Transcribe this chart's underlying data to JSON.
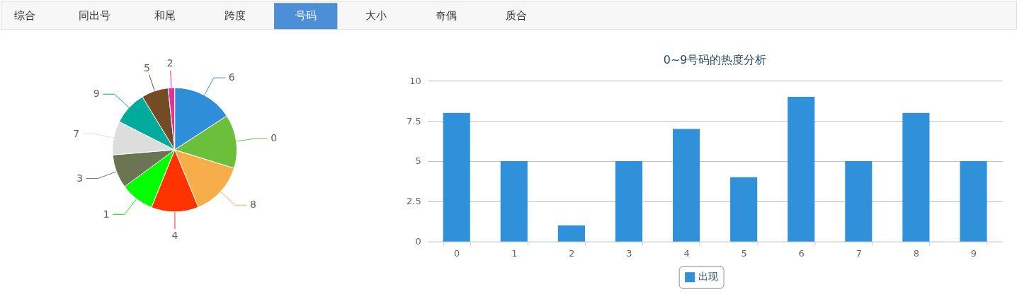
{
  "chart_data": [
    {
      "type": "other",
      "categories": [
        "综合",
        "同出号",
        "和尾",
        "跨度",
        "号码",
        "大小",
        "奇偶",
        "质合"
      ],
      "colors": [
        null,
        null,
        null,
        null,
        "#4d8fd6",
        null,
        null,
        null
      ]
    },
    {
      "type": "pie",
      "categories": [
        "6",
        "0",
        "8",
        "4",
        "1",
        "3",
        "7",
        "9",
        "5",
        "2"
      ],
      "values": [
        15.8,
        14.0,
        14.0,
        12.3,
        8.8,
        8.8,
        8.8,
        8.8,
        7.0,
        1.7
      ],
      "colors": [
        "#2f8ed8",
        "#6cbf3b",
        "#f7ad48",
        "#ff3300",
        "#00ff00",
        "#6b7553",
        "#dddddd",
        "#00ab9c",
        "#744b25",
        "#e0339a"
      ]
    },
    {
      "type": "bar",
      "title": "0~9号码的热度分析",
      "categories": [
        "0",
        "1",
        "2",
        "3",
        "4",
        "5",
        "6",
        "7",
        "8",
        "9"
      ],
      "series": [
        {
          "name": "出现",
          "color": "#3090d9",
          "values": [
            8,
            5,
            1,
            5,
            7,
            4,
            9,
            5,
            8,
            5
          ]
        }
      ],
      "ylim": [
        0,
        10
      ],
      "yticks": [
        0,
        2.5,
        5,
        7.5,
        10
      ],
      "grid": "y",
      "legend": "bottom"
    }
  ]
}
